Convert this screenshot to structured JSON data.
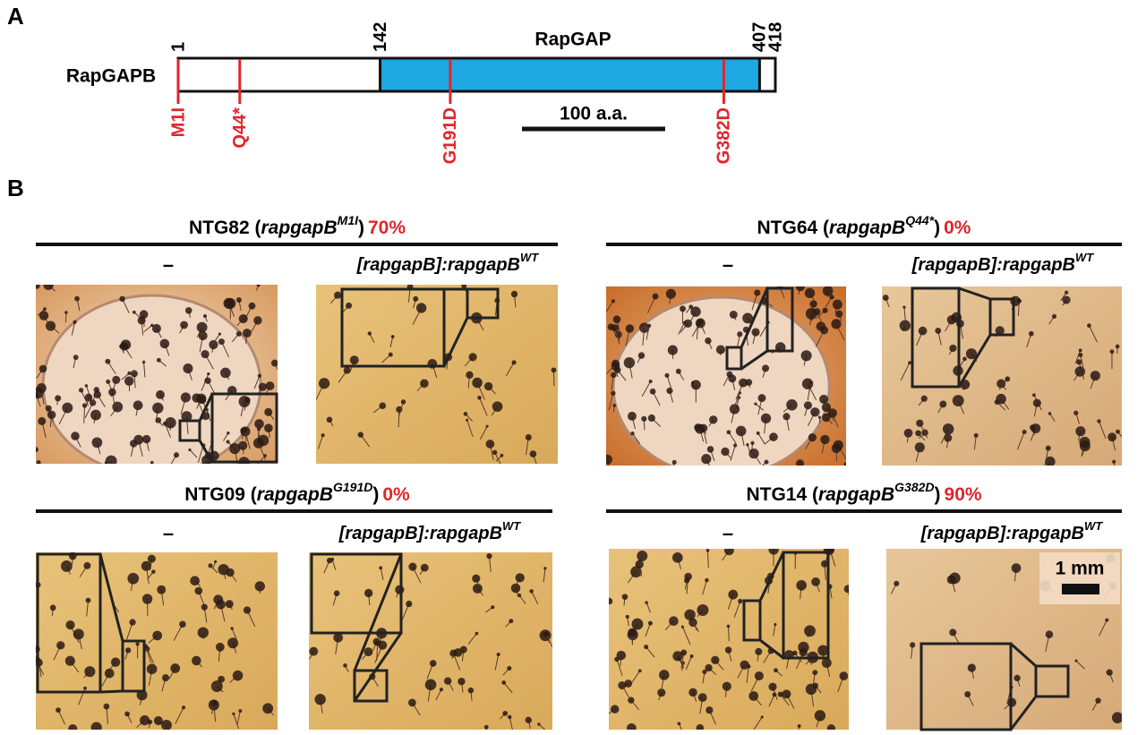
{
  "panel_a": {
    "letter": "A",
    "protein": "RapGAPB",
    "domain": "RapGAP",
    "boundaries": [
      "1",
      "142",
      "407",
      "418"
    ],
    "mutations": [
      "M1I",
      "Q44*",
      "G191D",
      "G382D"
    ],
    "scale_bar": "100 a.a."
  },
  "panel_b": {
    "letter": "B",
    "strains": [
      {
        "strain": "NTG82 (",
        "gene": "rapgapB",
        "allele": "M1I",
        "close": ")",
        "rescue": "70%",
        "control": "–",
        "construct": "[rapgapB]:rapgapB",
        "construct_sup": "WT"
      },
      {
        "strain": "NTG64 (",
        "gene": "rapgapB",
        "allele": "Q44*",
        "close": ")",
        "rescue": "0%",
        "control": "–",
        "construct": "[rapgapB]:rapgapB",
        "construct_sup": "WT"
      },
      {
        "strain": "NTG09 (",
        "gene": "rapgapB",
        "allele": "G191D",
        "close": ")",
        "rescue": "0%",
        "control": "–",
        "construct": "[rapgapB]:rapgapB",
        "construct_sup": "WT"
      },
      {
        "strain": "NTG14 (",
        "gene": "rapgapB",
        "allele": "G382D",
        "close": ")",
        "rescue": "90%",
        "control": "–",
        "construct": "[rapgapB]:rapgapB",
        "construct_sup": "WT"
      }
    ],
    "scale": "1 mm"
  }
}
